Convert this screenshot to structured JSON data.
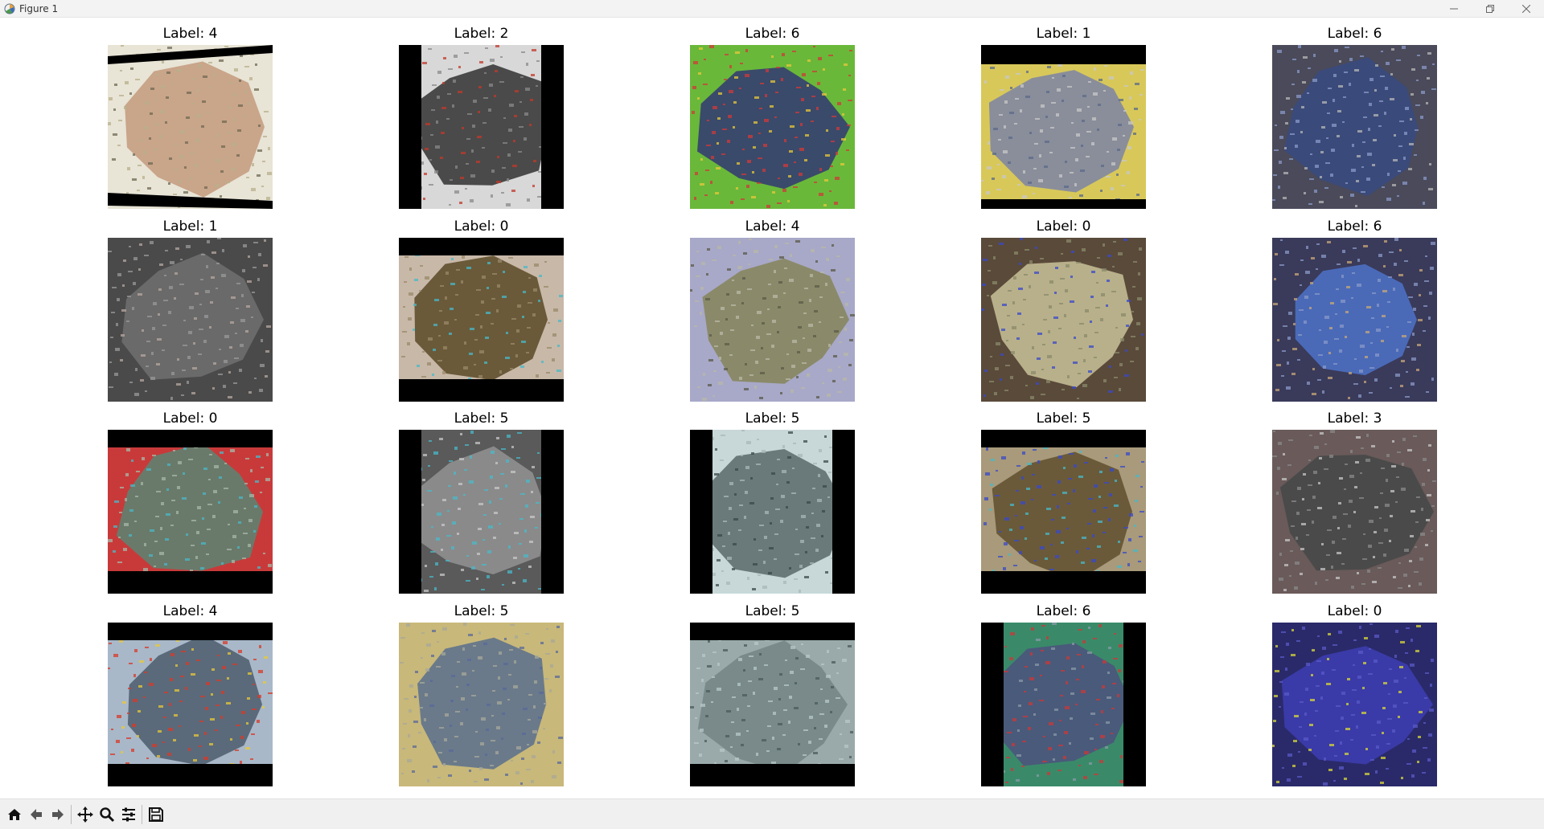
{
  "window": {
    "title": "Figure 1",
    "app_icon": "matplotlib-icon",
    "controls": [
      "minimize-icon",
      "restore-icon",
      "close-icon"
    ]
  },
  "figure": {
    "rows": 4,
    "cols": 5,
    "panels": [
      {
        "title": "Label: 4",
        "palette": [
          "#c9a58a",
          "#b8b08a",
          "#6f6a52",
          "#e8e4d6"
        ],
        "border": "bars-tilted"
      },
      {
        "title": "Label: 2",
        "palette": [
          "#4a4a4a",
          "#8a8a8a",
          "#c23a2a",
          "#d8d8d8"
        ],
        "border": "bars-side"
      },
      {
        "title": "Label: 6",
        "palette": [
          "#3a4a6a",
          "#d03a3a",
          "#e8c83a",
          "#6ab83a"
        ],
        "border": "none"
      },
      {
        "title": "Label: 1",
        "palette": [
          "#8a8e9a",
          "#c8c8c8",
          "#5a6a8a",
          "#d8c85a"
        ],
        "border": "bars-top"
      },
      {
        "title": "Label: 6",
        "palette": [
          "#3a4a7a",
          "#8a9ac8",
          "#b8b8b8",
          "#4a4a5a"
        ],
        "border": "none"
      },
      {
        "title": "Label: 1",
        "palette": [
          "#6a6a6a",
          "#9a9a9a",
          "#b8a8a0",
          "#4a4a4a"
        ],
        "border": "none"
      },
      {
        "title": "Label: 0",
        "palette": [
          "#6a5a3a",
          "#9a8a6a",
          "#4ab8c8",
          "#c8b8a8"
        ],
        "border": "bars-topbottom"
      },
      {
        "title": "Label: 4",
        "palette": [
          "#8a8a6a",
          "#b8b8a8",
          "#5a5a4a",
          "#a8a8c8"
        ],
        "border": "none"
      },
      {
        "title": "Label: 0",
        "palette": [
          "#b8b08a",
          "#8a8a6a",
          "#3a4ac8",
          "#5a4a3a"
        ],
        "border": "none"
      },
      {
        "title": "Label: 6",
        "palette": [
          "#4a6ab8",
          "#8a9ac8",
          "#c8a87a",
          "#3a3a5a"
        ],
        "border": "none"
      },
      {
        "title": "Label: 0",
        "palette": [
          "#6a7a6a",
          "#a8b8a8",
          "#4ab8c8",
          "#c83a3a"
        ],
        "border": "bars-topbottom"
      },
      {
        "title": "Label: 5",
        "palette": [
          "#8a8a8a",
          "#4ab8c8",
          "#c8c8c8",
          "#5a5a5a"
        ],
        "border": "bars-side"
      },
      {
        "title": "Label: 5",
        "palette": [
          "#6a7a7a",
          "#a8b8b8",
          "#3a4a4a",
          "#c8d8d8"
        ],
        "border": "bars-side"
      },
      {
        "title": "Label: 5",
        "palette": [
          "#6a5a3a",
          "#3a4ac8",
          "#4ab8c8",
          "#a89a7a"
        ],
        "border": "bars-topbottom"
      },
      {
        "title": "Label: 3",
        "palette": [
          "#4a4a4a",
          "#8a8a8a",
          "#c8c8c8",
          "#6a5a5a"
        ],
        "border": "none"
      },
      {
        "title": "Label: 4",
        "palette": [
          "#5a6a7a",
          "#d83a2a",
          "#e8c83a",
          "#a8b8c8"
        ],
        "border": "bars-topbottom"
      },
      {
        "title": "Label: 5",
        "palette": [
          "#6a7a8a",
          "#a8a89a",
          "#5a6a9a",
          "#c8b87a"
        ],
        "border": "none"
      },
      {
        "title": "Label: 5",
        "palette": [
          "#7a8a8a",
          "#b8c8c8",
          "#4a5a5a",
          "#9aaaaa"
        ],
        "border": "bars-topbottom"
      },
      {
        "title": "Label: 6",
        "palette": [
          "#4a5a7a",
          "#c83a3a",
          "#8a9aa8",
          "#3a8a6a"
        ],
        "border": "bars-side"
      },
      {
        "title": "Label: 0",
        "palette": [
          "#3a3aa8",
          "#5a5ac8",
          "#d8d83a",
          "#2a2a6a"
        ],
        "border": "none"
      }
    ]
  },
  "toolbar": {
    "buttons": [
      "home-icon",
      "back-icon",
      "forward-icon",
      "pan-icon",
      "zoom-icon",
      "configure-subplots-icon",
      "save-icon"
    ]
  }
}
